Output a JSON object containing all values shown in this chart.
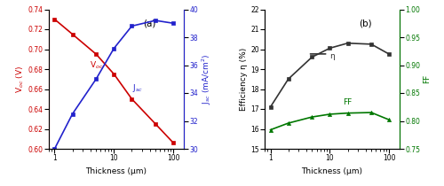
{
  "thickness": [
    1,
    2,
    5,
    10,
    20,
    50,
    100
  ],
  "Voc": [
    0.73,
    0.715,
    0.695,
    0.675,
    0.65,
    0.625,
    0.606
  ],
  "Jsc": [
    30.0,
    32.5,
    35.0,
    37.2,
    38.8,
    39.2,
    39.0
  ],
  "eta": [
    17.1,
    18.5,
    19.6,
    20.05,
    20.3,
    20.25,
    19.75
  ],
  "FF": [
    0.784,
    0.796,
    0.807,
    0.812,
    0.814,
    0.815,
    0.802
  ],
  "Voc_color": "#cc0000",
  "Jsc_color": "#2222cc",
  "eta_color": "#333333",
  "FF_color": "#007700",
  "Voc_ylim": [
    0.6,
    0.74
  ],
  "Jsc_ylim": [
    30,
    40
  ],
  "eta_ylim": [
    15,
    22
  ],
  "FF_ylim": [
    0.75,
    1.0
  ],
  "xlabel": "Thickness (μm)",
  "ylabel_a_left": "V$_{oc}$ (V)",
  "ylabel_a_right": "J$_{sc}$ (mA/cm$^2$)",
  "ylabel_b_left": "Efficiency η (%)",
  "ylabel_b_right": "FF",
  "label_Voc": "V$_{oc}$",
  "label_Jsc": "J$_{sc}$",
  "label_eta": "η",
  "label_FF": "FF",
  "panel_a": "(a)",
  "panel_b": "(b)"
}
